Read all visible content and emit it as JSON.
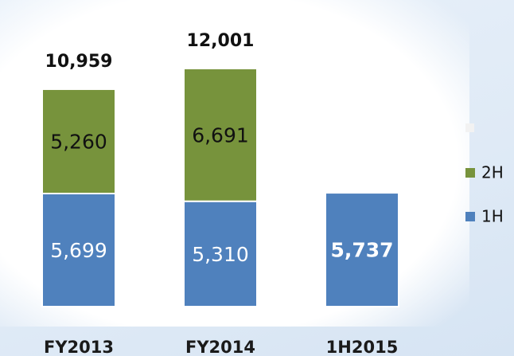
{
  "chart_data": {
    "type": "stacked_bar",
    "categories": [
      "FY2013",
      "FY2014",
      "1H2015"
    ],
    "series": [
      {
        "name": "1H",
        "color": "#4f81bd",
        "values": [
          5699,
          5310,
          5737
        ],
        "value_labels": [
          "5,699",
          "5,310",
          "5,737"
        ]
      },
      {
        "name": "2H",
        "color": "#77933c",
        "values": [
          5260,
          6691,
          null
        ],
        "value_labels": [
          "5,260",
          "6,691",
          null
        ]
      }
    ],
    "totals": [
      10959,
      12001,
      null
    ],
    "total_labels": [
      "10,959",
      "12,001",
      null
    ],
    "legend": "right"
  }
}
